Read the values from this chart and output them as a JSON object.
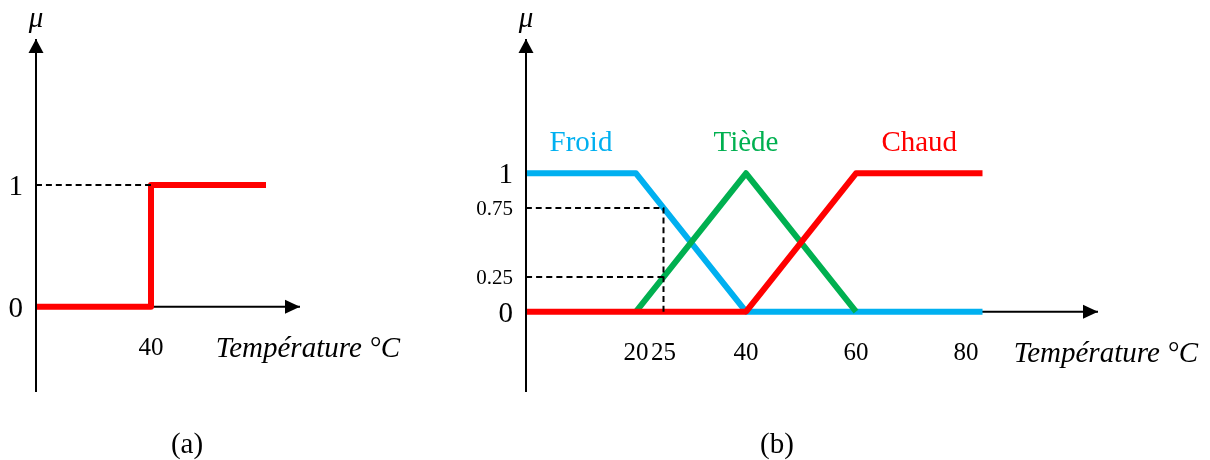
{
  "chart_data": [
    {
      "type": "step",
      "xlabel": "Température °C",
      "ylabel": "μ",
      "annotations": [
        "(a)"
      ],
      "categories": [
        null,
        "40",
        null
      ],
      "ylim": [
        -0.7,
        2.2
      ],
      "yticks": [
        0,
        1
      ],
      "series": [
        {
          "color": "#ff0000",
          "values": [
            0,
            1,
            1
          ]
        },
        {
          "type": "line",
          "color": "#000000",
          "line_style": "dashed",
          "values": [
            1,
            1,
            null
          ]
        }
      ]
    },
    {
      "type": "line",
      "xlabel": "Température °C",
      "ylabel": "μ",
      "annotations": [
        "(b)"
      ],
      "xlim": [
        0,
        104
      ],
      "ylim": [
        -0.58,
        1.97
      ],
      "xticks": [
        20,
        25,
        40,
        60,
        80
      ],
      "yticks": [
        0,
        0.25,
        0.75,
        1
      ],
      "series": [
        {
          "name": "Froid",
          "color": "#00b0f0",
          "x": [
            0,
            20,
            40,
            83
          ],
          "values": [
            1,
            1,
            0,
            0
          ]
        },
        {
          "name": "Tiède",
          "color": "#00b050",
          "x": [
            20,
            40,
            60
          ],
          "values": [
            0,
            1,
            0
          ]
        },
        {
          "name": "Chaud",
          "color": "#ff0000",
          "x": [
            0,
            40,
            60,
            83
          ],
          "values": [
            0,
            0,
            1,
            1
          ]
        },
        {
          "color": "#000000",
          "line_style": "dashed",
          "x": [
            0,
            25,
            25
          ],
          "values": [
            0.75,
            0.75,
            0
          ]
        },
        {
          "color": "#000000",
          "line_style": "dashed",
          "x": [
            0,
            25
          ],
          "values": [
            0.25,
            0.25
          ]
        }
      ]
    }
  ]
}
